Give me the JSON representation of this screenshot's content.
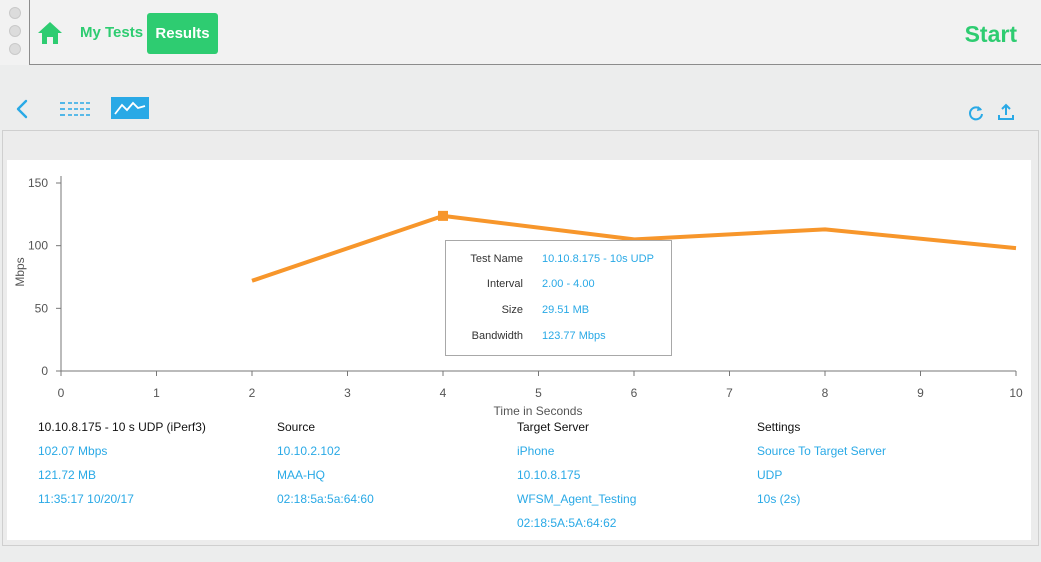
{
  "nav": {
    "my_tests": "My Tests",
    "results": "Results",
    "start": "Start"
  },
  "toolbar": {
    "back_icon": "chevron-left-icon",
    "list_icon": "list-view-icon",
    "graph_icon": "graph-view-icon",
    "refresh_icon": "refresh-icon",
    "share_icon": "upload-icon"
  },
  "colors": {
    "accent_green": "#2ecc71",
    "link_blue": "#29a9e6",
    "series_orange": "#f7962b"
  },
  "chart_data": {
    "type": "line",
    "xlabel": "Time in Seconds",
    "ylabel": "Mbps",
    "xlim": [
      0,
      10
    ],
    "ylim": [
      0,
      150
    ],
    "x_ticks": [
      "0",
      "1",
      "2",
      "3",
      "4",
      "5",
      "6",
      "7",
      "8",
      "9",
      "10"
    ],
    "y_ticks": [
      "0",
      "50",
      "100",
      "150"
    ],
    "series": [
      {
        "x": [
          2,
          4,
          6,
          8,
          10
        ],
        "values": [
          72,
          123.77,
          105,
          113,
          98
        ]
      }
    ],
    "highlight_index": 1
  },
  "tooltip": {
    "rows": [
      {
        "label": "Test Name",
        "value": "10.10.8.175 - 10s UDP"
      },
      {
        "label": "Interval",
        "value": "2.00 - 4.00"
      },
      {
        "label": "Size",
        "value": "29.51 MB"
      },
      {
        "label": "Bandwidth",
        "value": "123.77 Mbps"
      }
    ]
  },
  "summary": {
    "test": {
      "heading": "10.10.8.175 - 10 s UDP (iPerf3)",
      "values": [
        "102.07 Mbps",
        "121.72 MB",
        "11:35:17  10/20/17"
      ]
    },
    "source": {
      "heading": "Source",
      "values": [
        "10.10.2.102",
        "MAA-HQ",
        "02:18:5a:5a:64:60"
      ]
    },
    "target": {
      "heading": "Target Server",
      "values": [
        "iPhone",
        "10.10.8.175",
        "WFSM_Agent_Testing",
        "02:18:5A:5A:64:62"
      ]
    },
    "settings": {
      "heading": "Settings",
      "values": [
        "Source To Target Server",
        "UDP",
        "10s (2s)"
      ]
    }
  }
}
